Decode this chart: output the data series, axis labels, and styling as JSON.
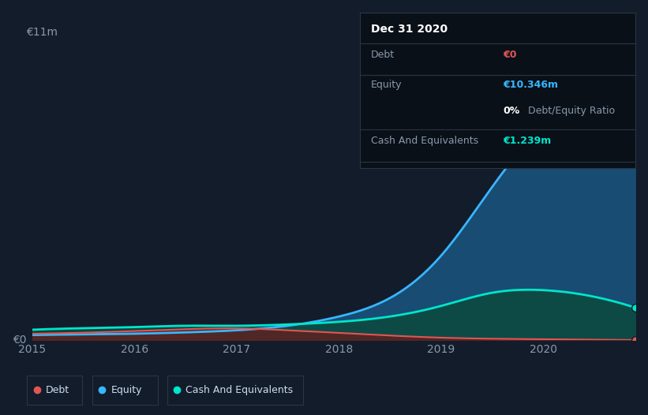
{
  "bg_color": "#131c2b",
  "plot_bg_color": "#131c2b",
  "grid_color": "#1e2d40",
  "years": [
    2015,
    2015.4,
    2016,
    2016.5,
    2017,
    2017.5,
    2018,
    2018.5,
    2019,
    2019.5,
    2020,
    2020.5,
    2020.9
  ],
  "debt": [
    0.25,
    0.28,
    0.35,
    0.42,
    0.45,
    0.38,
    0.28,
    0.18,
    0.1,
    0.06,
    0.04,
    0.02,
    0.01
  ],
  "equity": [
    0.2,
    0.22,
    0.25,
    0.3,
    0.38,
    0.55,
    0.9,
    1.6,
    3.2,
    5.8,
    8.2,
    9.8,
    10.346
  ],
  "cash": [
    0.4,
    0.45,
    0.5,
    0.55,
    0.55,
    0.6,
    0.7,
    0.9,
    1.3,
    1.8,
    1.9,
    1.65,
    1.239
  ],
  "debt_color": "#e05555",
  "equity_color": "#38b6ff",
  "cash_color": "#00e5cc",
  "equity_fill": "#1a5580",
  "cash_fill": "#0d4a40",
  "debt_fill": "#6b1a1a",
  "ymax": 11.0,
  "ytick_label": "€11m",
  "y0_label": "€0",
  "info_box": {
    "title": "Dec 31 2020",
    "debt_label": "Debt",
    "debt_value": "€0",
    "debt_value_color": "#e05555",
    "equity_label": "Equity",
    "equity_value": "€10.346m",
    "equity_value_color": "#38b6ff",
    "ratio_value": "0%",
    "ratio_label": " Debt/Equity Ratio",
    "ratio_value_color": "#ffffff",
    "cash_label": "Cash And Equivalents",
    "cash_value": "€1.239m",
    "cash_value_color": "#00e5cc",
    "label_color": "#8899aa",
    "box_bg": "#0a1018",
    "box_border": "#2a3545",
    "title_color": "#ffffff",
    "title_fontsize": 10,
    "row_fontsize": 9
  },
  "legend": [
    {
      "label": "Debt",
      "color": "#e05555"
    },
    {
      "label": "Equity",
      "color": "#38b6ff"
    },
    {
      "label": "Cash And Equivalents",
      "color": "#00e5cc"
    }
  ],
  "legend_border": "#2a3545",
  "text_color": "#8899aa",
  "xtick_color": "#8899aa"
}
